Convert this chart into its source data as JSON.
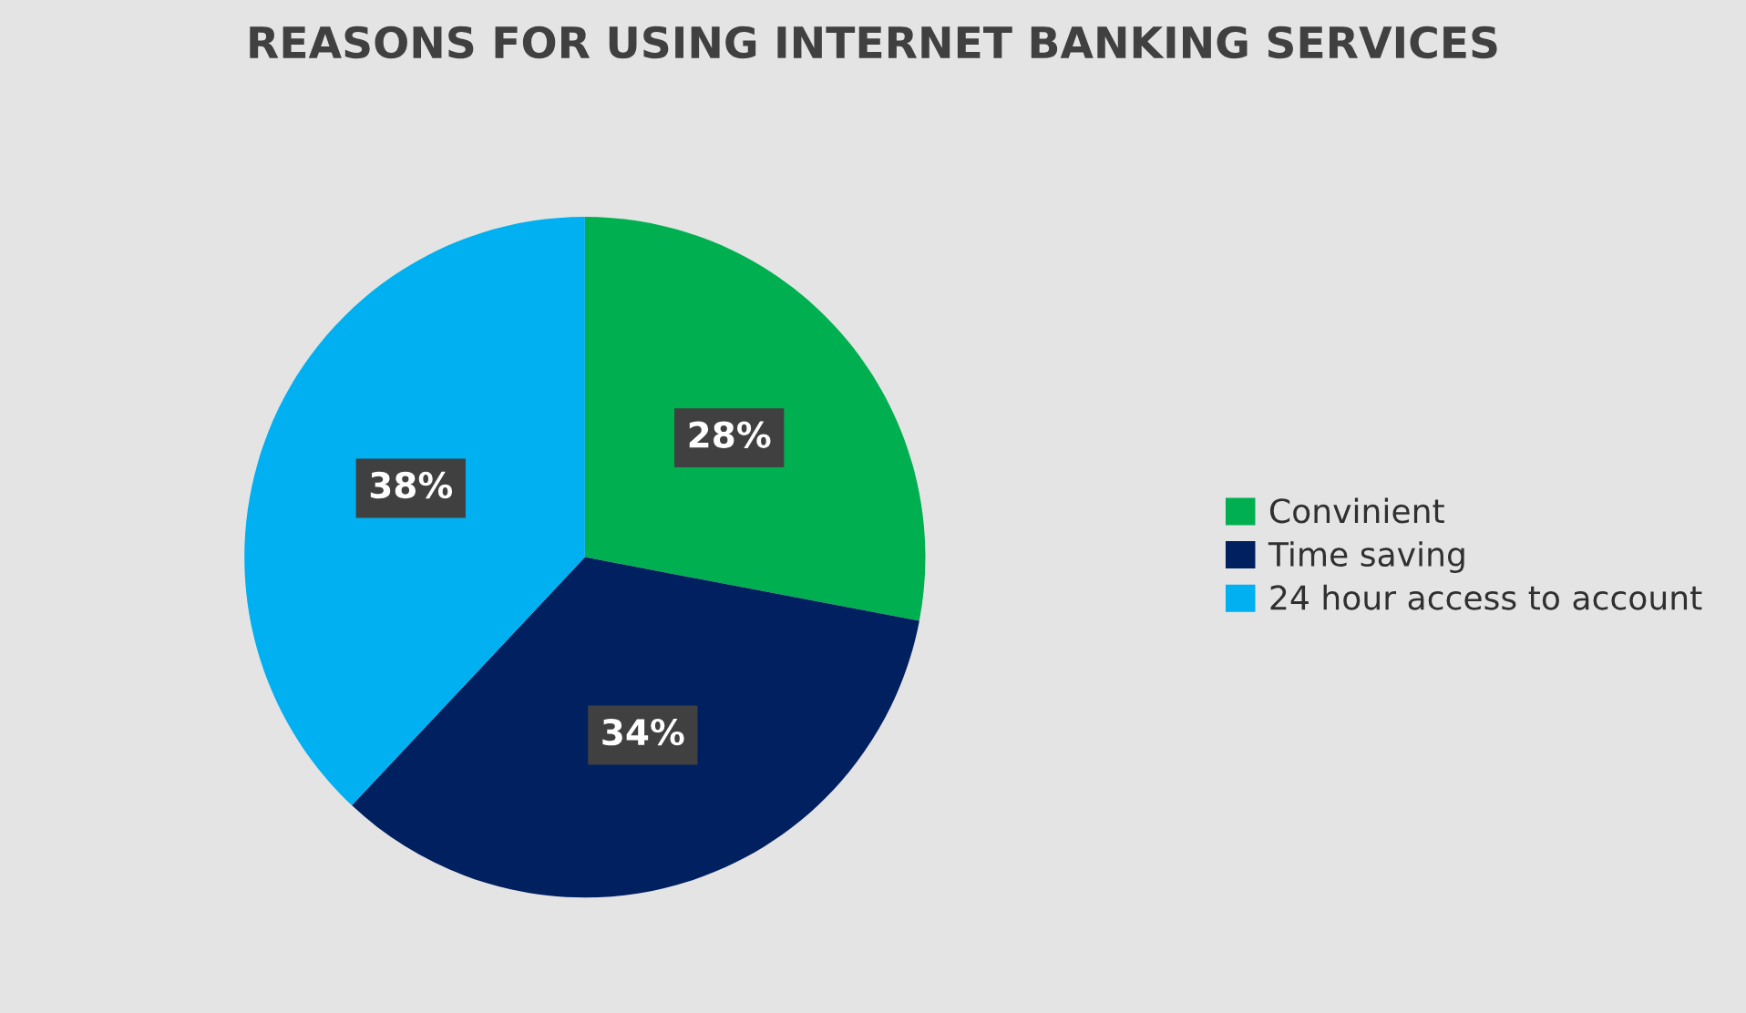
{
  "chart_data": {
    "type": "pie",
    "title": "REASONS FOR USING INTERNET BANKING SERVICES",
    "categories": [
      "Convinient",
      "Time saving",
      "24 hour access to account"
    ],
    "values": [
      28,
      34,
      38
    ],
    "value_labels": [
      "28%",
      "34%",
      "38%"
    ],
    "colors": [
      "#00b050",
      "#002060",
      "#00b0f0"
    ],
    "legend": "right"
  }
}
